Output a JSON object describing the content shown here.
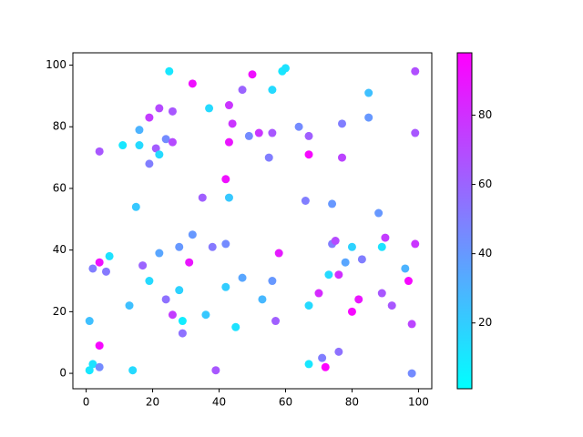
{
  "chart_data": {
    "type": "scatter",
    "colormap": "cool",
    "x": [
      1,
      1,
      2,
      2,
      4,
      4,
      4,
      4,
      6,
      7,
      11,
      13,
      14,
      15,
      16,
      16,
      17,
      19,
      19,
      19,
      21,
      22,
      22,
      22,
      24,
      24,
      25,
      26,
      26,
      26,
      28,
      28,
      29,
      29,
      31,
      32,
      32,
      35,
      36,
      37,
      38,
      39,
      42,
      42,
      42,
      43,
      43,
      43,
      44,
      45,
      47,
      47,
      49,
      50,
      52,
      53,
      55,
      56,
      56,
      56,
      57,
      58,
      59,
      60,
      64,
      66,
      67,
      67,
      67,
      67,
      70,
      71,
      72,
      73,
      74,
      74,
      75,
      76,
      76,
      77,
      77,
      78,
      80,
      80,
      82,
      83,
      85,
      85,
      88,
      89,
      89,
      90,
      92,
      96,
      97,
      98,
      98,
      99,
      99,
      99
    ],
    "values": [
      17,
      1,
      3,
      34,
      2,
      9,
      36,
      72,
      33,
      38,
      74,
      22,
      1,
      54,
      79,
      74,
      35,
      30,
      68,
      83,
      73,
      71,
      86,
      39,
      76,
      24,
      98,
      85,
      75,
      19,
      41,
      27,
      13,
      17,
      36,
      94,
      45,
      57,
      19,
      86,
      41,
      1,
      63,
      28,
      42,
      75,
      87,
      57,
      81,
      15,
      92,
      31,
      77,
      97,
      78,
      24,
      70,
      78,
      92,
      30,
      17,
      39,
      98,
      99,
      80,
      56,
      77,
      71,
      22,
      3,
      26,
      5,
      2,
      32,
      55,
      42,
      43,
      7,
      32,
      81,
      70,
      36,
      41,
      20,
      24,
      37,
      91,
      83,
      52,
      41,
      26,
      44,
      22,
      34,
      30,
      16,
      0,
      98,
      78,
      42
    ],
    "color_values": [
      25,
      10,
      12,
      50,
      45,
      95,
      92,
      65,
      52,
      12,
      10,
      25,
      15,
      22,
      30,
      15,
      60,
      15,
      50,
      75,
      63,
      15,
      70,
      35,
      45,
      55,
      10,
      65,
      70,
      75,
      40,
      18,
      55,
      8,
      90,
      92,
      40,
      62,
      22,
      15,
      52,
      65,
      92,
      20,
      45,
      90,
      78,
      22,
      78,
      12,
      60,
      35,
      45,
      92,
      78,
      28,
      50,
      65,
      15,
      40,
      62,
      88,
      10,
      12,
      45,
      50,
      62,
      95,
      15,
      10,
      82,
      50,
      97,
      15,
      40,
      50,
      70,
      55,
      80,
      50,
      72,
      35,
      18,
      95,
      90,
      50,
      25,
      40,
      40,
      12,
      65,
      75,
      65,
      30,
      95,
      72,
      45,
      68,
      65,
      78
    ],
    "xlim": [
      -4,
      104
    ],
    "ylim": [
      -5,
      104
    ],
    "xticks": [
      0,
      20,
      40,
      60,
      80,
      100
    ],
    "yticks": [
      0,
      20,
      40,
      60,
      80,
      100
    ],
    "clim": [
      1,
      98
    ],
    "cticks": [
      20,
      40,
      60,
      80
    ]
  }
}
